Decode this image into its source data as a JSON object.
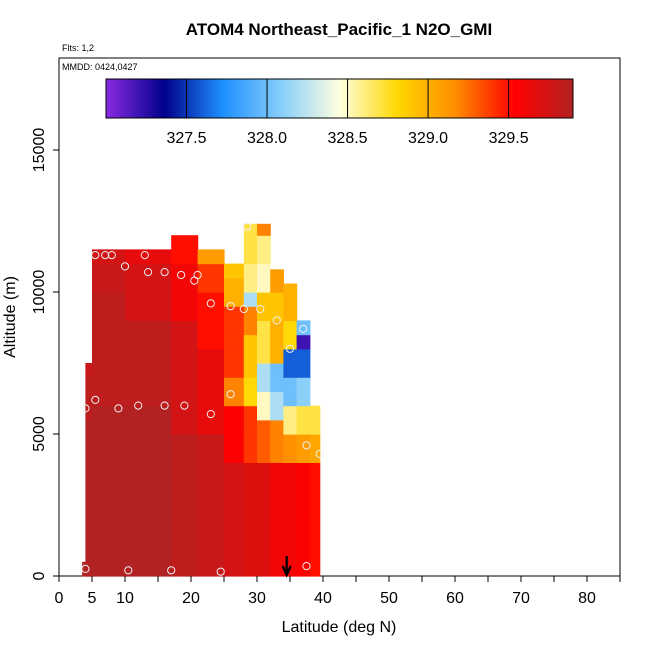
{
  "chart_data": {
    "type": "heatmap",
    "title": "ATOM4 Northeast_Pacific_1 N2O_GMI",
    "subtitle_flights": "Flts: 1,2",
    "subtitle_dates": "MMDD: 0424,0427",
    "xlabel": "Latitude (deg N)",
    "ylabel": "Altitude (m)",
    "xlim": [
      0,
      85
    ],
    "ylim": [
      0,
      17500
    ],
    "x_ticks": [
      0,
      5,
      10,
      20,
      30,
      40,
      50,
      60,
      70,
      80
    ],
    "y_ticks": [
      0,
      5000,
      10000,
      15000
    ],
    "colorbar": {
      "range": [
        327.0,
        329.9
      ],
      "ticks": [
        327.5,
        328.0,
        328.5,
        329.0,
        329.5
      ],
      "colors": [
        "#8a2be2",
        "#00008b",
        "#1e90ff",
        "#87cefa",
        "#ffffe0",
        "#ffd700",
        "#ff8c00",
        "#ff0000",
        "#b22222"
      ]
    },
    "columns": [
      {
        "x0": 3.5,
        "x1": 5,
        "top": 500,
        "values": [
          [
            0,
            329.9
          ]
        ]
      },
      {
        "x0": 4,
        "x1": 5,
        "top": 7500,
        "values": [
          [
            0,
            329.9
          ],
          [
            5500,
            329.85
          ],
          [
            7000,
            329.8
          ]
        ]
      },
      {
        "x0": 5,
        "x1": 10,
        "top": 11500,
        "values": [
          [
            0,
            329.9
          ],
          [
            6000,
            329.85
          ],
          [
            10000,
            329.8
          ],
          [
            11000,
            329.75
          ]
        ]
      },
      {
        "x0": 10,
        "x1": 17,
        "top": 11500,
        "values": [
          [
            0,
            329.9
          ],
          [
            6000,
            329.85
          ],
          [
            9000,
            329.75
          ],
          [
            11000,
            329.65
          ]
        ]
      },
      {
        "x0": 17,
        "x1": 21,
        "top": 12000,
        "values": [
          [
            0,
            329.85
          ],
          [
            5000,
            329.75
          ],
          [
            9000,
            329.6
          ],
          [
            11000,
            329.5
          ]
        ]
      },
      {
        "x0": 21,
        "x1": 25,
        "top": 11500,
        "values": [
          [
            0,
            329.8
          ],
          [
            5000,
            329.65
          ],
          [
            8000,
            329.5
          ],
          [
            10000,
            329.4
          ],
          [
            11000,
            329.1
          ]
        ]
      },
      {
        "x0": 25,
        "x1": 28,
        "top": 11000,
        "values": [
          [
            0,
            329.75
          ],
          [
            4000,
            329.55
          ],
          [
            6000,
            329.2
          ],
          [
            7000,
            329.4
          ],
          [
            9500,
            329.0
          ],
          [
            10500,
            328.9
          ]
        ]
      },
      {
        "x0": 28,
        "x1": 30,
        "top": 12400,
        "values": [
          [
            0,
            329.7
          ],
          [
            4000,
            329.4
          ],
          [
            6000,
            328.8
          ],
          [
            7000,
            328.9
          ],
          [
            8500,
            329.2
          ],
          [
            9500,
            328.2
          ],
          [
            10000,
            328.6
          ],
          [
            11000,
            328.7
          ]
        ]
      },
      {
        "x0": 30,
        "x1": 32,
        "top": 12400,
        "values": [
          [
            0,
            329.7
          ],
          [
            4000,
            329.3
          ],
          [
            5500,
            328.5
          ],
          [
            6500,
            328.2
          ],
          [
            7500,
            328.7
          ],
          [
            9000,
            328.9
          ],
          [
            10000,
            328.5
          ],
          [
            11000,
            328.6
          ],
          [
            12000,
            329.2
          ]
        ]
      },
      {
        "x0": 32,
        "x1": 34,
        "top": 10800,
        "values": [
          [
            0,
            329.6
          ],
          [
            4000,
            329.2
          ],
          [
            5500,
            328.2
          ],
          [
            6500,
            328.0
          ],
          [
            7500,
            329.0
          ],
          [
            9000,
            328.9
          ],
          [
            10000,
            329.1
          ]
        ]
      },
      {
        "x0": 34,
        "x1": 36,
        "top": 10300,
        "values": [
          [
            0,
            329.6
          ],
          [
            4000,
            329.15
          ],
          [
            5000,
            328.6
          ],
          [
            6000,
            328.0
          ],
          [
            7000,
            327.6
          ],
          [
            8000,
            328.8
          ],
          [
            9000,
            329.0
          ]
        ]
      },
      {
        "x0": 36,
        "x1": 38,
        "top": 9000,
        "values": [
          [
            0,
            329.55
          ],
          [
            4000,
            329.1
          ],
          [
            5000,
            328.7
          ],
          [
            6000,
            328.1
          ],
          [
            7000,
            327.6
          ],
          [
            8000,
            327.2
          ],
          [
            8500,
            328.0
          ]
        ]
      },
      {
        "x0": 38,
        "x1": 39.5,
        "top": 6000,
        "values": [
          [
            0,
            329.5
          ],
          [
            4000,
            329.05
          ],
          [
            5000,
            328.7
          ],
          [
            5800,
            328.1
          ]
        ]
      }
    ],
    "points": [
      {
        "x": 4,
        "y": 250
      },
      {
        "x": 10.5,
        "y": 200
      },
      {
        "x": 17,
        "y": 200
      },
      {
        "x": 24.5,
        "y": 150
      },
      {
        "x": 37.5,
        "y": 350
      },
      {
        "x": 4,
        "y": 5900
      },
      {
        "x": 5.5,
        "y": 6200
      },
      {
        "x": 9,
        "y": 5900
      },
      {
        "x": 12,
        "y": 6000
      },
      {
        "x": 16,
        "y": 6000
      },
      {
        "x": 19,
        "y": 6000
      },
      {
        "x": 23,
        "y": 5700
      },
      {
        "x": 26,
        "y": 6400
      },
      {
        "x": 37.5,
        "y": 4600
      },
      {
        "x": 39.5,
        "y": 4300
      },
      {
        "x": 5.5,
        "y": 11300
      },
      {
        "x": 7,
        "y": 11300
      },
      {
        "x": 8,
        "y": 11300
      },
      {
        "x": 13,
        "y": 11300
      },
      {
        "x": 10,
        "y": 10900
      },
      {
        "x": 13.5,
        "y": 10700
      },
      {
        "x": 16,
        "y": 10700
      },
      {
        "x": 18.5,
        "y": 10600
      },
      {
        "x": 21,
        "y": 10600
      },
      {
        "x": 20.5,
        "y": 10400
      },
      {
        "x": 23,
        "y": 9600
      },
      {
        "x": 26,
        "y": 9500
      },
      {
        "x": 28,
        "y": 9400
      },
      {
        "x": 30.5,
        "y": 9400
      },
      {
        "x": 33,
        "y": 9000
      },
      {
        "x": 37,
        "y": 8700
      },
      {
        "x": 35,
        "y": 8000
      },
      {
        "x": 28.5,
        "y": 12300
      }
    ],
    "arrow_x": 34.5
  }
}
